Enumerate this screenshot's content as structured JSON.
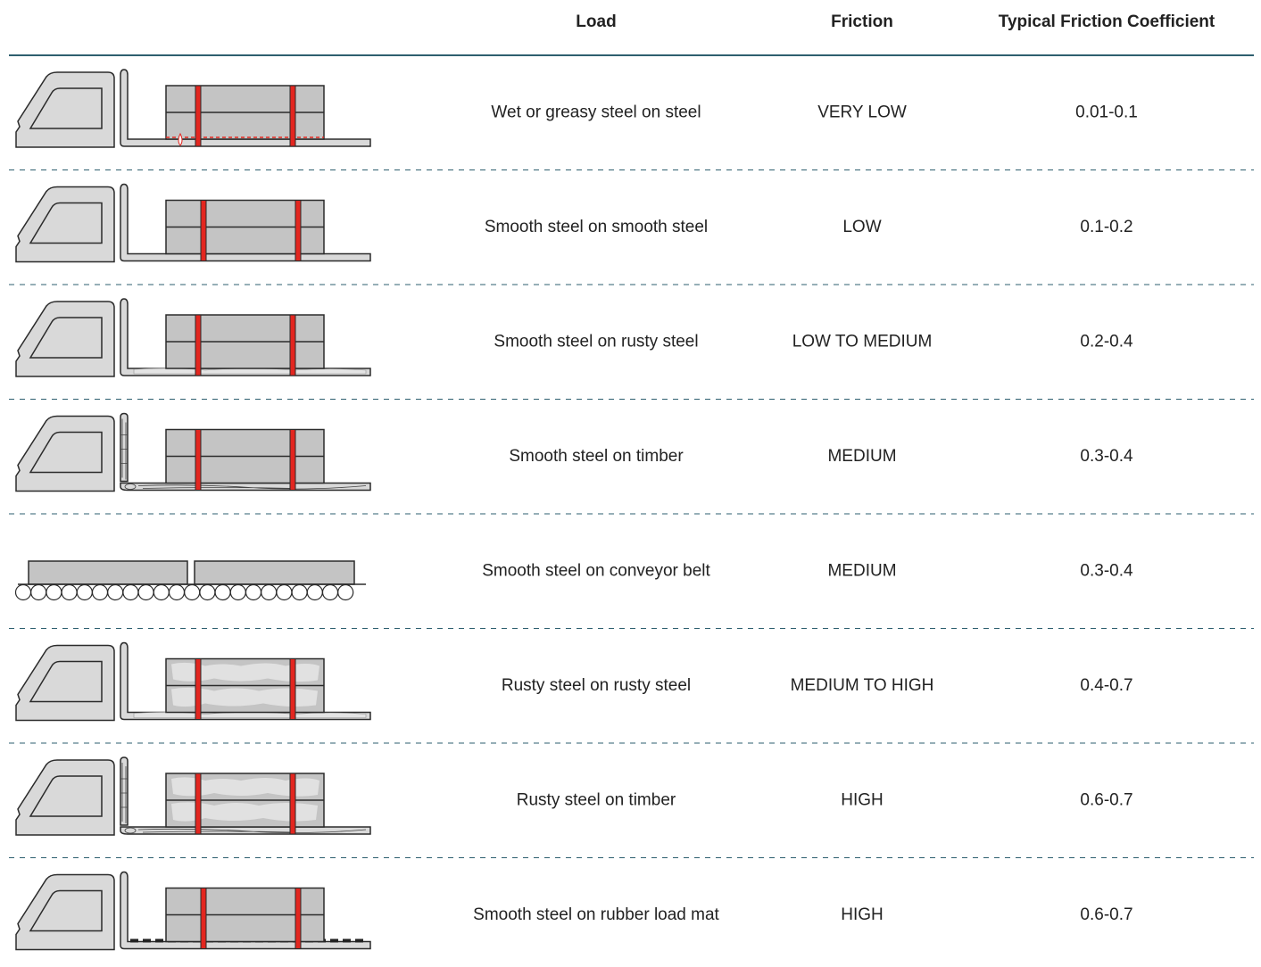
{
  "table": {
    "header": [
      "Load",
      "Friction",
      "Typical Friction Coefficient"
    ],
    "rows": [
      [
        "Wet or greasy steel on steel",
        "VERY LOW",
        "0.01-0.1"
      ],
      [
        "Smooth steel on smooth steel",
        "LOW",
        "0.1-0.2"
      ],
      [
        "Smooth steel on rusty steel",
        "LOW TO MEDIUM",
        "0.2-0.4"
      ],
      [
        "Smooth steel on timber",
        "MEDIUM",
        "0.3-0.4"
      ],
      [
        "Smooth steel on conveyor belt",
        "MEDIUM",
        "0.3-0.4"
      ],
      [
        "Rusty steel on rusty steel",
        "MEDIUM TO HIGH",
        "0.4-0.7"
      ],
      [
        "Rusty steel on timber",
        "HIGH",
        "0.6-0.7"
      ],
      [
        "Smooth steel on rubber load mat",
        "HIGH",
        "0.6-0.7"
      ]
    ]
  }
}
